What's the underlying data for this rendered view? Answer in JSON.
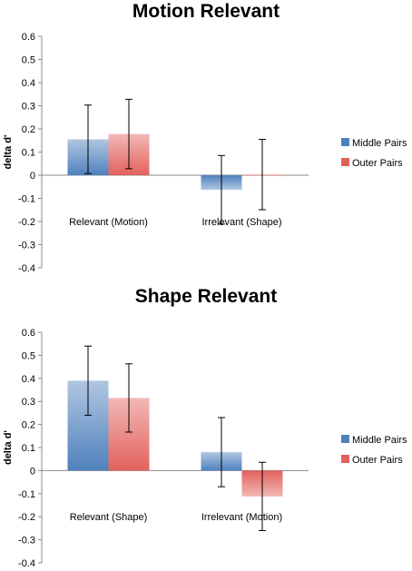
{
  "chart_data": [
    {
      "type": "bar",
      "title": "Motion Relevant",
      "ylabel": "delta d'",
      "xlabel": "",
      "ylim": [
        -0.4,
        0.6
      ],
      "yticks": [
        "0.6",
        "0.5",
        "0.4",
        "0.3",
        "0.2",
        "0.1",
        "0",
        "-0.1",
        "-0.2",
        "-0.3",
        "-0.4"
      ],
      "grid": false,
      "legend_position": "right",
      "categories": [
        "Relevant (Motion)",
        "Irrelevant (Shape)"
      ],
      "series": [
        {
          "name": "Middle Pairs",
          "values": [
            0.155,
            -0.063
          ],
          "error": [
            0.148,
            0.148
          ],
          "color": "#4f81bd"
        },
        {
          "name": "Outer Pairs",
          "values": [
            0.178,
            0.003
          ],
          "error": [
            0.15,
            0.152
          ],
          "color": "#e2615c"
        }
      ]
    },
    {
      "type": "bar",
      "title": "Shape Relevant",
      "ylabel": "delta d'",
      "xlabel": "",
      "ylim": [
        -0.4,
        0.6
      ],
      "yticks": [
        "0.6",
        "0.5",
        "0.4",
        "0.3",
        "0.2",
        "0.1",
        "0",
        "-0.1",
        "-0.2",
        "-0.3",
        "-0.4"
      ],
      "grid": false,
      "legend_position": "right",
      "categories": [
        "Relevant (Shape)",
        "Irrelevant (Motion)"
      ],
      "series": [
        {
          "name": "Middle Pairs",
          "values": [
            0.39,
            0.08
          ],
          "error": [
            0.15,
            0.15
          ],
          "color": "#4f81bd"
        },
        {
          "name": "Outer Pairs",
          "values": [
            0.315,
            -0.112
          ],
          "error": [
            0.148,
            0.148
          ],
          "color": "#e2615c"
        }
      ]
    }
  ]
}
